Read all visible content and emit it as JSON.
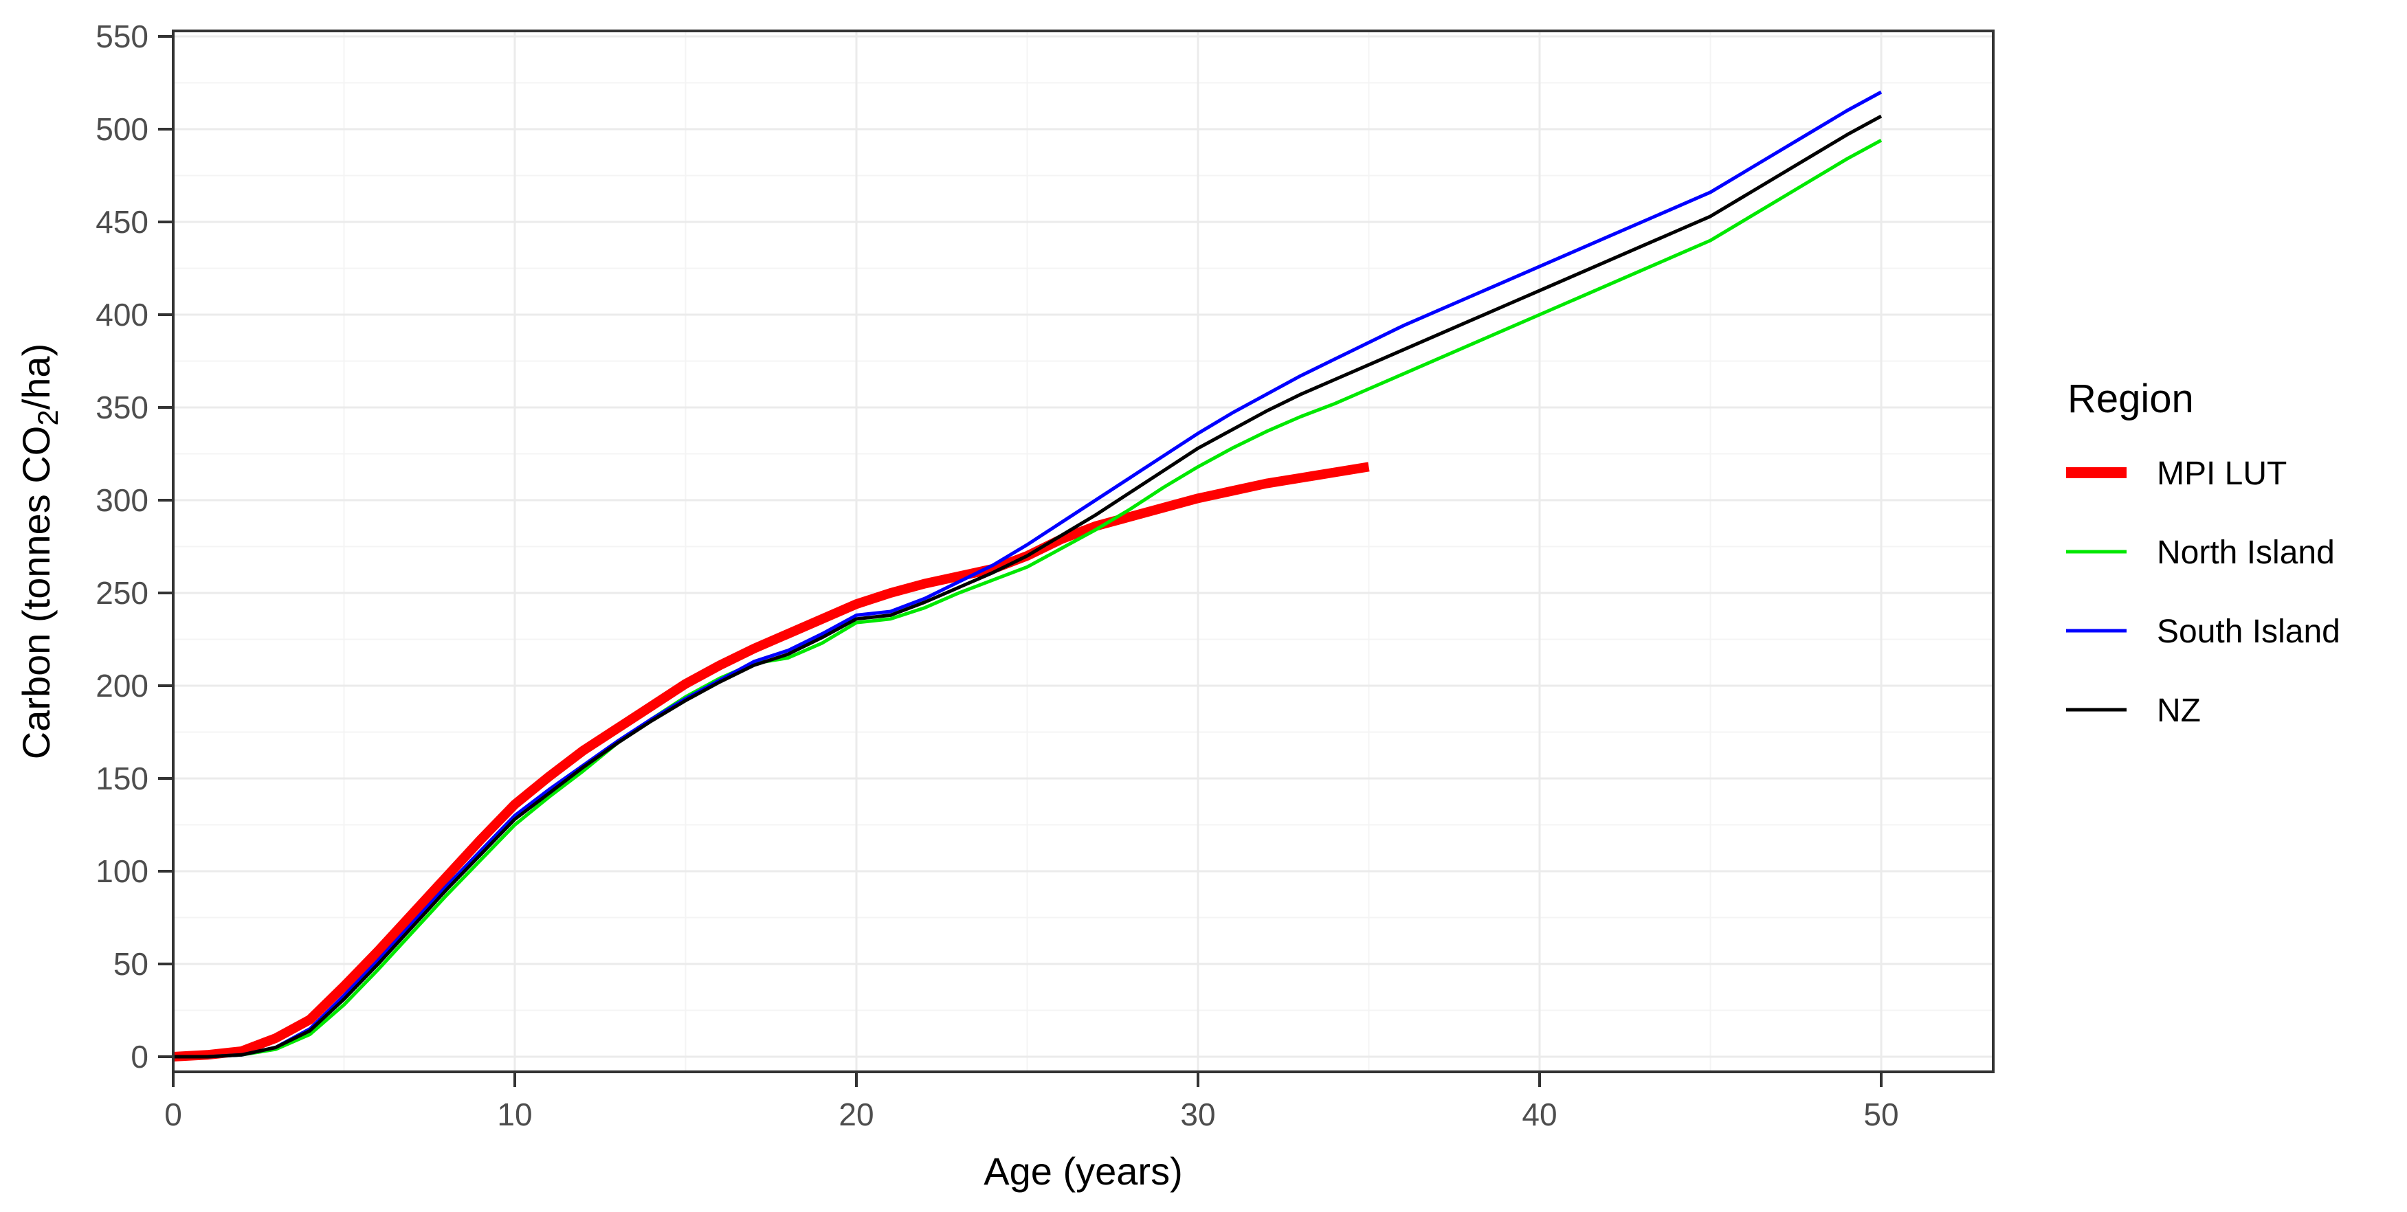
{
  "chart_data": {
    "type": "line",
    "title": "",
    "xlabel": "Age (years)",
    "ylabel_parts": [
      "Carbon (tonnes CO",
      "2",
      "/ha)"
    ],
    "x_axis": {
      "ticks": [
        0,
        10,
        20,
        30,
        40,
        50
      ],
      "minor_ticks": [
        5,
        15,
        25,
        35,
        45
      ],
      "min": 0,
      "max": 50
    },
    "y_axis": {
      "ticks": [
        0,
        50,
        100,
        150,
        200,
        250,
        300,
        350,
        400,
        450,
        500,
        550
      ],
      "minor_ticks": [
        25,
        75,
        125,
        175,
        225,
        275,
        325,
        375,
        425,
        475,
        525
      ],
      "min": 0,
      "max": 550
    },
    "grid": "major-and-minor",
    "legend": {
      "title": "Region",
      "position": "right",
      "entries": [
        "MPI LUT",
        "North Island",
        "South Island",
        "NZ"
      ]
    },
    "colors": {
      "mpi_lut": "#FF0000",
      "north_island": "#00E800",
      "south_island": "#0000FF",
      "nz": "#000000",
      "grid_major": "#EBEBEB",
      "grid_minor": "#F4F4F4",
      "panel_border": "#333333",
      "tick_label": "#4D4D4D",
      "axis_title": "#000000"
    },
    "series": [
      {
        "name": "MPI LUT",
        "color_key": "mpi_lut",
        "width": 14,
        "x": [
          0,
          1,
          2,
          3,
          4,
          5,
          6,
          7,
          8,
          9,
          10,
          11,
          12,
          13,
          14,
          15,
          16,
          17,
          18,
          19,
          20,
          21,
          22,
          23,
          24,
          25,
          26,
          27,
          28,
          29,
          30,
          31,
          32,
          33,
          34,
          35
        ],
        "values": [
          0,
          1,
          3,
          10,
          20,
          38,
          57,
          77,
          97,
          117,
          136,
          151,
          165,
          177,
          189,
          201,
          211,
          220,
          228,
          236,
          244,
          250,
          255,
          259,
          263,
          270,
          279,
          286,
          291,
          296,
          301,
          305,
          309,
          312,
          315,
          318
        ]
      },
      {
        "name": "North Island",
        "color_key": "north_island",
        "width": 5,
        "x": [
          0,
          1,
          2,
          3,
          4,
          5,
          6,
          7,
          8,
          9,
          10,
          11,
          12,
          13,
          14,
          15,
          16,
          17,
          18,
          19,
          20,
          21,
          22,
          23,
          24,
          25,
          26,
          27,
          28,
          29,
          30,
          31,
          32,
          33,
          34,
          35,
          36,
          37,
          38,
          39,
          40,
          41,
          42,
          43,
          44,
          45,
          46,
          47,
          48,
          49,
          50
        ],
        "values": [
          0,
          0,
          1,
          4,
          12,
          28,
          47,
          67,
          87,
          106,
          125,
          140,
          154,
          169,
          182,
          194,
          204,
          212,
          215,
          223,
          234,
          236,
          242,
          250,
          257,
          264,
          274,
          284,
          295,
          307,
          318,
          328,
          337,
          345,
          352,
          360,
          368,
          376,
          384,
          392,
          400,
          408,
          416,
          424,
          432,
          440,
          451,
          462,
          473,
          484,
          494
        ]
      },
      {
        "name": "South Island",
        "color_key": "south_island",
        "width": 5,
        "x": [
          0,
          1,
          2,
          3,
          4,
          5,
          6,
          7,
          8,
          9,
          10,
          11,
          12,
          13,
          14,
          15,
          16,
          17,
          18,
          19,
          20,
          21,
          22,
          23,
          24,
          25,
          26,
          27,
          28,
          29,
          30,
          31,
          32,
          33,
          34,
          35,
          36,
          37,
          38,
          39,
          40,
          41,
          42,
          43,
          44,
          45,
          46,
          47,
          48,
          49,
          50
        ],
        "values": [
          0,
          0,
          1,
          5,
          15,
          33,
          52,
          72,
          92,
          111,
          130,
          144,
          157,
          170,
          182,
          193,
          203,
          213,
          219,
          228,
          238,
          240,
          247,
          256,
          265,
          276,
          288,
          300,
          312,
          324,
          336,
          347,
          357,
          367,
          376,
          385,
          394,
          402,
          410,
          418,
          426,
          434,
          442,
          450,
          458,
          466,
          477,
          488,
          499,
          510,
          520
        ]
      },
      {
        "name": "NZ",
        "color_key": "nz",
        "width": 5,
        "x": [
          0,
          1,
          2,
          3,
          4,
          5,
          6,
          7,
          8,
          9,
          10,
          11,
          12,
          13,
          14,
          15,
          16,
          17,
          18,
          19,
          20,
          21,
          22,
          23,
          24,
          25,
          26,
          27,
          28,
          29,
          30,
          31,
          32,
          33,
          34,
          35,
          36,
          37,
          38,
          39,
          40,
          41,
          42,
          43,
          44,
          45,
          46,
          47,
          48,
          49,
          50
        ],
        "values": [
          0,
          0,
          1,
          5,
          14,
          31,
          50,
          70,
          90,
          109,
          128,
          142,
          156,
          169,
          181,
          192,
          202,
          211,
          217,
          226,
          236,
          238,
          245,
          253,
          261,
          270,
          281,
          292,
          304,
          316,
          328,
          338,
          348,
          357,
          365,
          373,
          381,
          389,
          397,
          405,
          413,
          421,
          429,
          437,
          445,
          453,
          464,
          475,
          486,
          497,
          507
        ]
      }
    ]
  }
}
